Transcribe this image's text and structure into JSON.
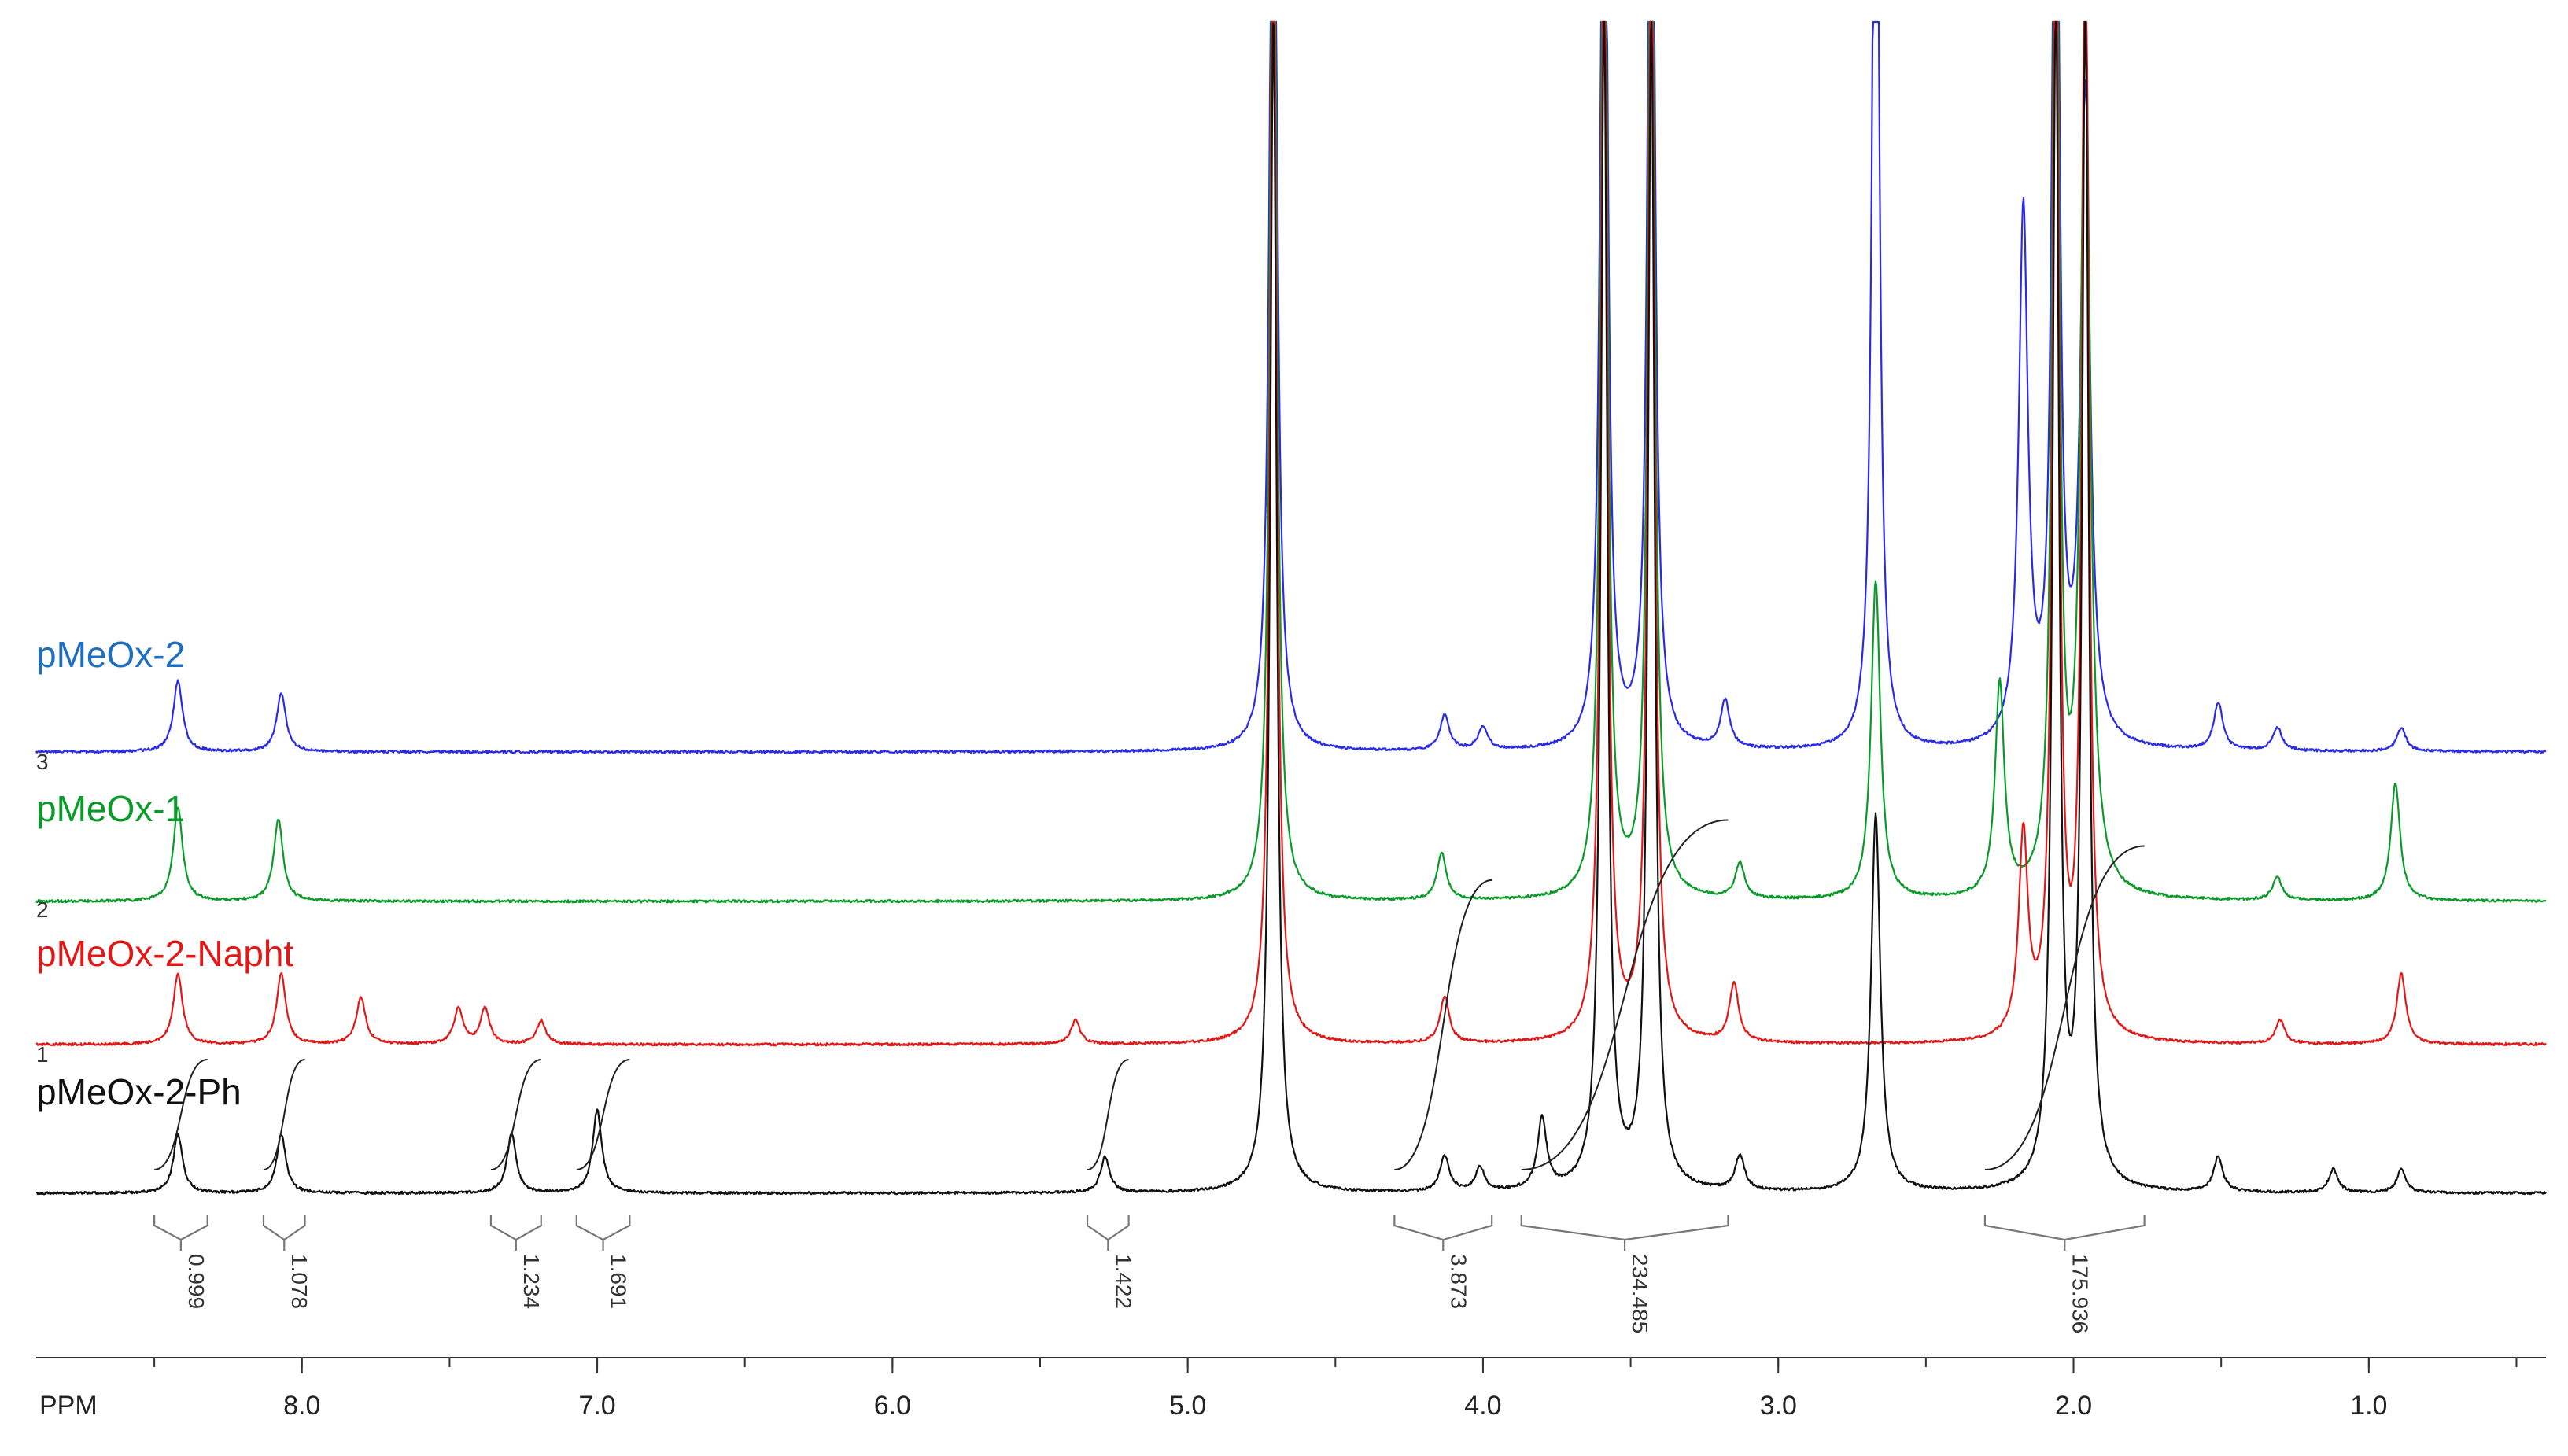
{
  "chart_data": {
    "type": "line",
    "title": "",
    "xlabel": "PPM",
    "ylabel": "",
    "x_reversed": true,
    "xlim": [
      8.9,
      0.4
    ],
    "x_ticks": [
      8.0,
      7.0,
      6.0,
      5.0,
      4.0,
      3.0,
      2.0,
      1.0
    ],
    "x_tick_labels": [
      "8.0",
      "7.0",
      "6.0",
      "5.0",
      "4.0",
      "3.0",
      "2.0",
      "1.0"
    ],
    "grid": false,
    "legend_position": "left, beside each trace",
    "series": [
      {
        "name": "pMeOx-2",
        "trace_index": "3",
        "color": "#2a2ae8",
        "label_color": "#1f6fc0",
        "peaks": [
          {
            "ppm": 8.42,
            "height": 0.06
          },
          {
            "ppm": 8.07,
            "height": 0.05
          },
          {
            "ppm": 4.71,
            "height": 1.0
          },
          {
            "ppm": 4.13,
            "height": 0.03
          },
          {
            "ppm": 4.0,
            "height": 0.02
          },
          {
            "ppm": 3.59,
            "height": 1.0
          },
          {
            "ppm": 3.43,
            "height": 1.0
          },
          {
            "ppm": 3.18,
            "height": 0.04
          },
          {
            "ppm": 2.67,
            "height": 1.0
          },
          {
            "ppm": 2.17,
            "height": 0.45
          },
          {
            "ppm": 2.06,
            "height": 1.0
          },
          {
            "ppm": 1.96,
            "height": 0.55
          },
          {
            "ppm": 1.51,
            "height": 0.04
          },
          {
            "ppm": 1.31,
            "height": 0.02
          },
          {
            "ppm": 0.89,
            "height": 0.02
          }
        ]
      },
      {
        "name": "pMeOx-1",
        "trace_index": "2",
        "color": "#0a9a2a",
        "label_color": "#0a9a2a",
        "peaks": [
          {
            "ppm": 8.42,
            "height": 0.08
          },
          {
            "ppm": 8.08,
            "height": 0.07
          },
          {
            "ppm": 4.71,
            "height": 1.0
          },
          {
            "ppm": 4.14,
            "height": 0.04
          },
          {
            "ppm": 3.59,
            "height": 1.0
          },
          {
            "ppm": 3.43,
            "height": 1.0
          },
          {
            "ppm": 3.13,
            "height": 0.03
          },
          {
            "ppm": 2.67,
            "height": 0.27
          },
          {
            "ppm": 2.25,
            "height": 0.18
          },
          {
            "ppm": 2.06,
            "height": 1.0
          },
          {
            "ppm": 1.96,
            "height": 0.75
          },
          {
            "ppm": 1.31,
            "height": 0.02
          },
          {
            "ppm": 0.91,
            "height": 0.1
          }
        ]
      },
      {
        "name": "pMeOx-2-Napht",
        "trace_index": "1",
        "color": "#e01818",
        "label_color": "#e01818",
        "peaks": [
          {
            "ppm": 8.42,
            "height": 0.06
          },
          {
            "ppm": 8.07,
            "height": 0.06
          },
          {
            "ppm": 7.8,
            "height": 0.04
          },
          {
            "ppm": 7.47,
            "height": 0.03
          },
          {
            "ppm": 7.38,
            "height": 0.03
          },
          {
            "ppm": 7.19,
            "height": 0.02
          },
          {
            "ppm": 5.38,
            "height": 0.02
          },
          {
            "ppm": 4.71,
            "height": 1.0
          },
          {
            "ppm": 4.13,
            "height": 0.04
          },
          {
            "ppm": 3.59,
            "height": 1.0
          },
          {
            "ppm": 3.43,
            "height": 1.0
          },
          {
            "ppm": 3.15,
            "height": 0.05
          },
          {
            "ppm": 2.17,
            "height": 0.17
          },
          {
            "ppm": 2.06,
            "height": 1.0
          },
          {
            "ppm": 1.96,
            "height": 1.0
          },
          {
            "ppm": 1.3,
            "height": 0.02
          },
          {
            "ppm": 0.89,
            "height": 0.06
          }
        ]
      },
      {
        "name": "pMeOx-2-Ph",
        "trace_index": "",
        "color": "#111111",
        "label_color": "#111111",
        "peaks": [
          {
            "ppm": 8.42,
            "height": 0.05
          },
          {
            "ppm": 8.07,
            "height": 0.05
          },
          {
            "ppm": 7.29,
            "height": 0.05
          },
          {
            "ppm": 7.0,
            "height": 0.07
          },
          {
            "ppm": 5.28,
            "height": 0.03
          },
          {
            "ppm": 4.71,
            "height": 1.0
          },
          {
            "ppm": 4.13,
            "height": 0.03
          },
          {
            "ppm": 4.01,
            "height": 0.02
          },
          {
            "ppm": 3.8,
            "height": 0.06
          },
          {
            "ppm": 3.59,
            "height": 1.0
          },
          {
            "ppm": 3.43,
            "height": 1.0
          },
          {
            "ppm": 3.13,
            "height": 0.03
          },
          {
            "ppm": 2.67,
            "height": 0.32
          },
          {
            "ppm": 2.06,
            "height": 1.0
          },
          {
            "ppm": 1.96,
            "height": 1.0
          },
          {
            "ppm": 1.51,
            "height": 0.03
          },
          {
            "ppm": 1.12,
            "height": 0.02
          },
          {
            "ppm": 0.89,
            "height": 0.02
          }
        ]
      }
    ],
    "integrals": [
      {
        "from": 8.5,
        "to": 8.32,
        "label": "0.999"
      },
      {
        "from": 8.13,
        "to": 7.99,
        "label": "1.078"
      },
      {
        "from": 7.36,
        "to": 7.19,
        "label": "1.234"
      },
      {
        "from": 7.07,
        "to": 6.89,
        "label": "1.691"
      },
      {
        "from": 5.34,
        "to": 5.2,
        "label": "1.422"
      },
      {
        "from": 4.3,
        "to": 3.97,
        "label": "3.873"
      },
      {
        "from": 3.87,
        "to": 3.17,
        "label": "234.485"
      },
      {
        "from": 2.3,
        "to": 1.76,
        "label": "175.936"
      }
    ]
  }
}
